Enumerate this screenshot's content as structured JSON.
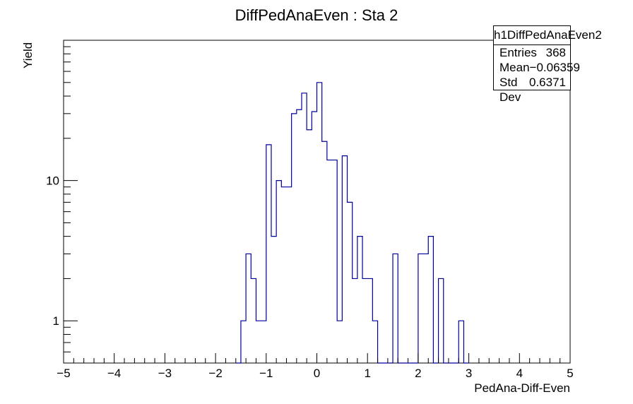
{
  "chart_data": {
    "type": "bar",
    "title": "DiffPedAnaEven : Sta 2",
    "xlabel": "PedAna-Diff-Even",
    "ylabel": "Yield",
    "xlim": [
      -5,
      5
    ],
    "ylim": [
      0.5,
      100
    ],
    "yscale": "log",
    "x_ticks": [
      "−5",
      "−4",
      "−3",
      "−2",
      "−1",
      "0",
      "1",
      "2",
      "3",
      "4",
      "5"
    ],
    "y_ticks": [
      "1",
      "10"
    ],
    "grid": false,
    "line_color": "#000099",
    "bin_width": 0.1,
    "bins": [
      {
        "x0": -1.6,
        "y": 0
      },
      {
        "x0": -1.5,
        "y": 1
      },
      {
        "x0": -1.4,
        "y": 3
      },
      {
        "x0": -1.3,
        "y": 2
      },
      {
        "x0": -1.2,
        "y": 1
      },
      {
        "x0": -1.1,
        "y": 1
      },
      {
        "x0": -1.0,
        "y": 18
      },
      {
        "x0": -0.9,
        "y": 4
      },
      {
        "x0": -0.8,
        "y": 10
      },
      {
        "x0": -0.7,
        "y": 9
      },
      {
        "x0": -0.6,
        "y": 9
      },
      {
        "x0": -0.5,
        "y": 30
      },
      {
        "x0": -0.4,
        "y": 32
      },
      {
        "x0": -0.3,
        "y": 42
      },
      {
        "x0": -0.2,
        "y": 23
      },
      {
        "x0": -0.1,
        "y": 31
      },
      {
        "x0": 0.0,
        "y": 50
      },
      {
        "x0": 0.1,
        "y": 19
      },
      {
        "x0": 0.2,
        "y": 14
      },
      {
        "x0": 0.3,
        "y": 14
      },
      {
        "x0": 0.4,
        "y": 1
      },
      {
        "x0": 0.5,
        "y": 15
      },
      {
        "x0": 0.6,
        "y": 7
      },
      {
        "x0": 0.7,
        "y": 2
      },
      {
        "x0": 0.8,
        "y": 4
      },
      {
        "x0": 0.9,
        "y": 2
      },
      {
        "x0": 1.0,
        "y": 2
      },
      {
        "x0": 1.1,
        "y": 1
      },
      {
        "x0": 1.2,
        "y": 0
      },
      {
        "x0": 1.3,
        "y": 0
      },
      {
        "x0": 1.4,
        "y": 0
      },
      {
        "x0": 1.5,
        "y": 3
      },
      {
        "x0": 1.6,
        "y": 0
      },
      {
        "x0": 1.7,
        "y": 0
      },
      {
        "x0": 1.8,
        "y": 0
      },
      {
        "x0": 1.9,
        "y": 0
      },
      {
        "x0": 2.0,
        "y": 3
      },
      {
        "x0": 2.1,
        "y": 3
      },
      {
        "x0": 2.2,
        "y": 4
      },
      {
        "x0": 2.3,
        "y": 0
      },
      {
        "x0": 2.4,
        "y": 2
      },
      {
        "x0": 2.5,
        "y": 0
      },
      {
        "x0": 2.6,
        "y": 0
      },
      {
        "x0": 2.7,
        "y": 0
      },
      {
        "x0": 2.8,
        "y": 1
      },
      {
        "x0": 2.9,
        "y": 0
      }
    ]
  },
  "stats_box": {
    "title": "h1DiffPedAnaEven2",
    "rows": [
      {
        "label": "Entries",
        "value": "368"
      },
      {
        "label": "Mean",
        "value": "−0.06359"
      },
      {
        "label": "Std Dev",
        "value": "0.6371"
      }
    ]
  }
}
